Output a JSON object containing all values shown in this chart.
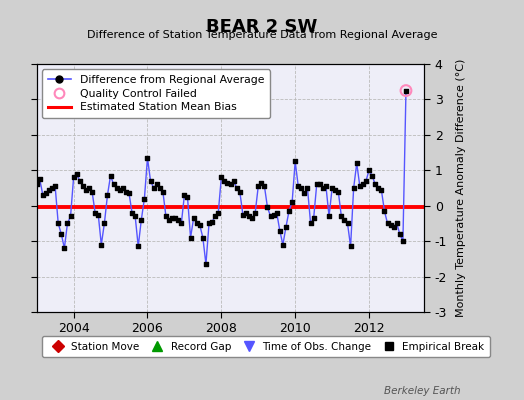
{
  "title": "BEAR 2 SW",
  "subtitle": "Difference of Station Temperature Data from Regional Average",
  "ylabel": "Monthly Temperature Anomaly Difference (°C)",
  "watermark": "Berkeley Earth",
  "bias_value": -0.05,
  "ylim": [
    -3,
    4
  ],
  "xlim": [
    2003.0,
    2013.5
  ],
  "xticks": [
    2004,
    2006,
    2008,
    2010,
    2012
  ],
  "yticks": [
    -3,
    -2,
    -1,
    0,
    1,
    2,
    3,
    4
  ],
  "line_color": "#5555ff",
  "bias_color": "#ff0000",
  "marker_color": "#000000",
  "bg_color": "#d0d0d0",
  "plot_bg_color": "#eeeef8",
  "qc_fail_point": [
    2013.0,
    3.25
  ],
  "time_series": [
    [
      2003.0,
      0.6
    ],
    [
      2003.083,
      0.75
    ],
    [
      2003.167,
      0.3
    ],
    [
      2003.25,
      0.35
    ],
    [
      2003.333,
      0.45
    ],
    [
      2003.417,
      0.5
    ],
    [
      2003.5,
      0.55
    ],
    [
      2003.583,
      -0.5
    ],
    [
      2003.667,
      -0.8
    ],
    [
      2003.75,
      -1.2
    ],
    [
      2003.833,
      -0.5
    ],
    [
      2003.917,
      -0.3
    ],
    [
      2004.0,
      0.8
    ],
    [
      2004.083,
      0.9
    ],
    [
      2004.167,
      0.7
    ],
    [
      2004.25,
      0.55
    ],
    [
      2004.333,
      0.45
    ],
    [
      2004.417,
      0.5
    ],
    [
      2004.5,
      0.4
    ],
    [
      2004.583,
      -0.2
    ],
    [
      2004.667,
      -0.25
    ],
    [
      2004.75,
      -1.1
    ],
    [
      2004.833,
      -0.5
    ],
    [
      2004.917,
      0.3
    ],
    [
      2005.0,
      0.85
    ],
    [
      2005.083,
      0.6
    ],
    [
      2005.167,
      0.5
    ],
    [
      2005.25,
      0.45
    ],
    [
      2005.333,
      0.5
    ],
    [
      2005.417,
      0.4
    ],
    [
      2005.5,
      0.35
    ],
    [
      2005.583,
      -0.2
    ],
    [
      2005.667,
      -0.3
    ],
    [
      2005.75,
      -1.15
    ],
    [
      2005.833,
      -0.4
    ],
    [
      2005.917,
      0.2
    ],
    [
      2006.0,
      1.35
    ],
    [
      2006.083,
      0.7
    ],
    [
      2006.167,
      0.5
    ],
    [
      2006.25,
      0.6
    ],
    [
      2006.333,
      0.5
    ],
    [
      2006.417,
      0.4
    ],
    [
      2006.5,
      -0.3
    ],
    [
      2006.583,
      -0.4
    ],
    [
      2006.667,
      -0.35
    ],
    [
      2006.75,
      -0.35
    ],
    [
      2006.833,
      -0.4
    ],
    [
      2006.917,
      -0.5
    ],
    [
      2007.0,
      0.3
    ],
    [
      2007.083,
      0.25
    ],
    [
      2007.167,
      -0.9
    ],
    [
      2007.25,
      -0.35
    ],
    [
      2007.333,
      -0.5
    ],
    [
      2007.417,
      -0.55
    ],
    [
      2007.5,
      -0.9
    ],
    [
      2007.583,
      -1.65
    ],
    [
      2007.667,
      -0.5
    ],
    [
      2007.75,
      -0.45
    ],
    [
      2007.833,
      -0.3
    ],
    [
      2007.917,
      -0.2
    ],
    [
      2008.0,
      0.8
    ],
    [
      2008.083,
      0.7
    ],
    [
      2008.167,
      0.65
    ],
    [
      2008.25,
      0.6
    ],
    [
      2008.333,
      0.7
    ],
    [
      2008.417,
      0.5
    ],
    [
      2008.5,
      0.4
    ],
    [
      2008.583,
      -0.25
    ],
    [
      2008.667,
      -0.2
    ],
    [
      2008.75,
      -0.3
    ],
    [
      2008.833,
      -0.35
    ],
    [
      2008.917,
      -0.2
    ],
    [
      2009.0,
      0.55
    ],
    [
      2009.083,
      0.65
    ],
    [
      2009.167,
      0.55
    ],
    [
      2009.25,
      -0.05
    ],
    [
      2009.333,
      -0.3
    ],
    [
      2009.417,
      -0.25
    ],
    [
      2009.5,
      -0.2
    ],
    [
      2009.583,
      -0.7
    ],
    [
      2009.667,
      -1.1
    ],
    [
      2009.75,
      -0.6
    ],
    [
      2009.833,
      -0.15
    ],
    [
      2009.917,
      0.1
    ],
    [
      2010.0,
      1.25
    ],
    [
      2010.083,
      0.55
    ],
    [
      2010.167,
      0.5
    ],
    [
      2010.25,
      0.35
    ],
    [
      2010.333,
      0.5
    ],
    [
      2010.417,
      -0.5
    ],
    [
      2010.5,
      -0.35
    ],
    [
      2010.583,
      0.6
    ],
    [
      2010.667,
      0.6
    ],
    [
      2010.75,
      0.5
    ],
    [
      2010.833,
      0.55
    ],
    [
      2010.917,
      -0.3
    ],
    [
      2011.0,
      0.5
    ],
    [
      2011.083,
      0.45
    ],
    [
      2011.167,
      0.4
    ],
    [
      2011.25,
      -0.3
    ],
    [
      2011.333,
      -0.4
    ],
    [
      2011.417,
      -0.5
    ],
    [
      2011.5,
      -1.15
    ],
    [
      2011.583,
      0.5
    ],
    [
      2011.667,
      1.2
    ],
    [
      2011.75,
      0.55
    ],
    [
      2011.833,
      0.6
    ],
    [
      2011.917,
      0.7
    ],
    [
      2012.0,
      1.0
    ],
    [
      2012.083,
      0.85
    ],
    [
      2012.167,
      0.6
    ],
    [
      2012.25,
      0.5
    ],
    [
      2012.333,
      0.45
    ],
    [
      2012.417,
      -0.15
    ],
    [
      2012.5,
      -0.5
    ],
    [
      2012.583,
      -0.55
    ],
    [
      2012.667,
      -0.6
    ],
    [
      2012.75,
      -0.5
    ],
    [
      2012.833,
      -0.8
    ],
    [
      2012.917,
      -1.0
    ],
    [
      2013.0,
      3.25
    ]
  ]
}
